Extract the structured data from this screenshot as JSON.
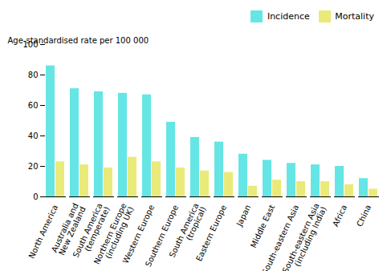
{
  "chart_data": {
    "type": "bar",
    "categories": [
      "North America",
      "Australia and\nNew Zealand",
      "South America\n(temperate)",
      "Northern Europe\n(including UK)",
      "Western Europe",
      "Southern Europe",
      "South America\n(tropical)",
      "Eastern Europe",
      "Japan",
      "Middle East",
      "South-eastern Asia",
      "South-eastern Asia\n(including India)",
      "Africa",
      "China"
    ],
    "series": [
      {
        "name": "Incidence",
        "color": "#66E5E5",
        "values": [
          86,
          71,
          69,
          68,
          67,
          49,
          39,
          36,
          28,
          24,
          22,
          21,
          20,
          12
        ]
      },
      {
        "name": "Mortality",
        "color": "#EAEA7A",
        "values": [
          23,
          21,
          19,
          26,
          23,
          19,
          17,
          16,
          7,
          11,
          10,
          10,
          8,
          5
        ]
      }
    ],
    "ylabel": "Age-standardised rate per 100 000",
    "ylim": [
      0,
      100
    ],
    "yticks": [
      0,
      20,
      40,
      60,
      80,
      100
    ],
    "legend": "upper right",
    "grid": false
  }
}
